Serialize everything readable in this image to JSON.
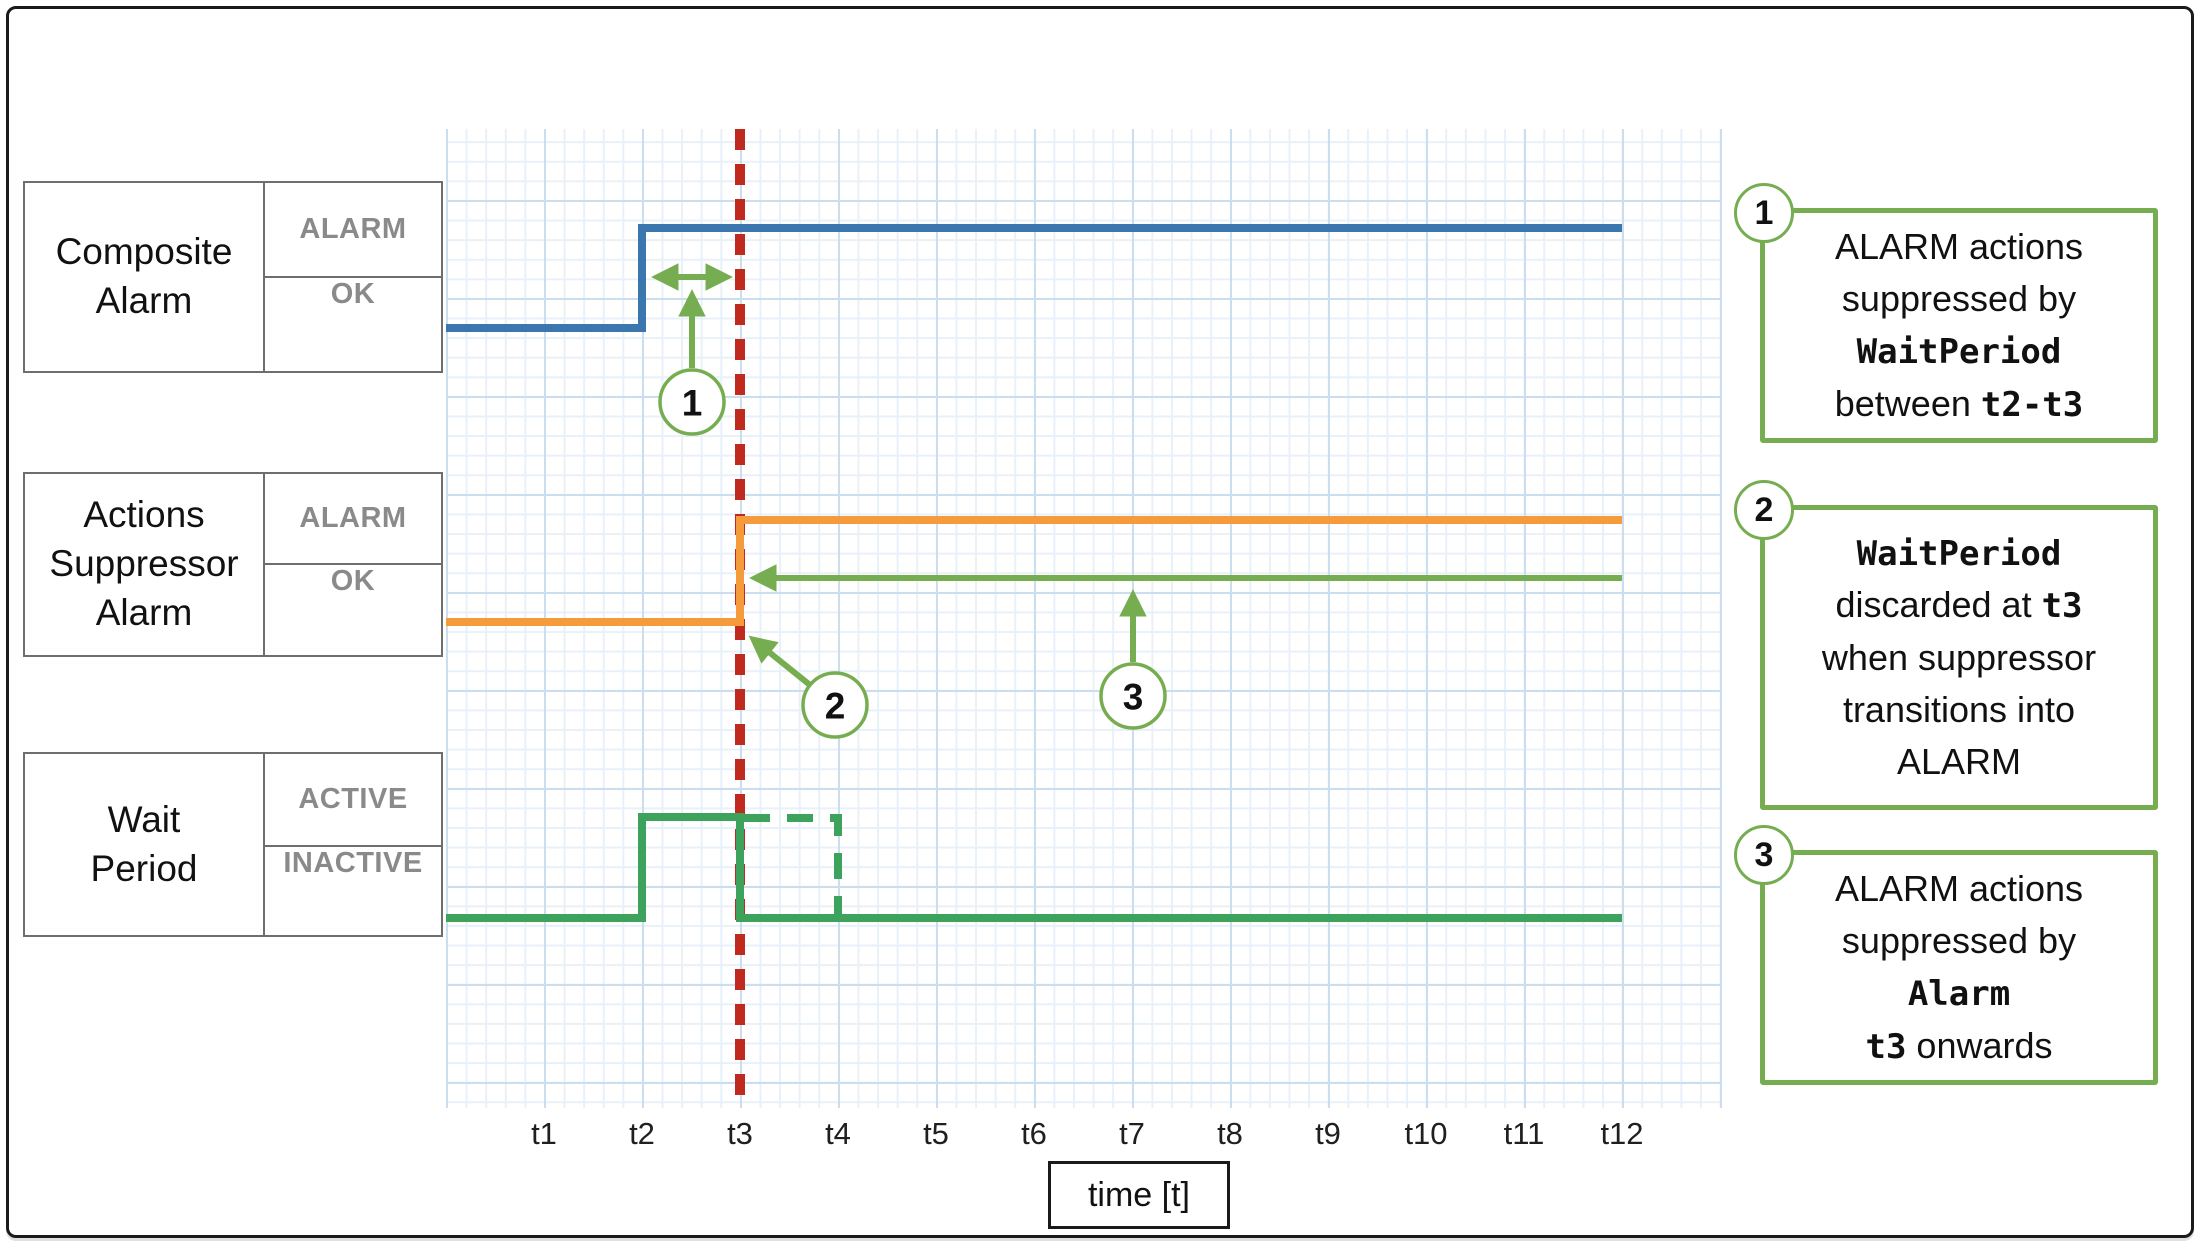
{
  "legend": {
    "rows": [
      {
        "name": "Composite\nAlarm",
        "state_top": "ALARM",
        "state_bottom": "OK"
      },
      {
        "name": "Actions\nSuppressor\nAlarm",
        "state_top": "ALARM",
        "state_bottom": "OK"
      },
      {
        "name": "Wait\nPeriod",
        "state_top": "ACTIVE",
        "state_bottom": "INACTIVE"
      }
    ]
  },
  "axis": {
    "ticks": [
      "t1",
      "t2",
      "t3",
      "t4",
      "t5",
      "t6",
      "t7",
      "t8",
      "t9",
      "t10",
      "t11",
      "t12"
    ],
    "unit_label": "time [t]"
  },
  "callouts": {
    "c1": "1",
    "c2": "2",
    "c3": "3"
  },
  "annotations": [
    {
      "number": "1",
      "lines": [
        [
          {
            "t": "ALARM actions"
          }
        ],
        [
          {
            "t": "suppressed by"
          }
        ],
        [
          {
            "t": "WaitPeriod",
            "code": true
          }
        ],
        [
          {
            "t": "between "
          },
          {
            "t": "t2-t3",
            "code": true
          }
        ]
      ]
    },
    {
      "number": "2",
      "lines": [
        [
          {
            "t": "WaitPeriod",
            "code": true
          }
        ],
        [
          {
            "t": "discarded at "
          },
          {
            "t": "t3",
            "code": true
          }
        ],
        [
          {
            "t": "when suppressor"
          }
        ],
        [
          {
            "t": "transitions into"
          }
        ],
        [
          {
            "t": "ALARM"
          }
        ]
      ]
    },
    {
      "number": "3",
      "lines": [
        [
          {
            "t": "ALARM actions"
          }
        ],
        [
          {
            "t": "suppressed by"
          }
        ],
        [
          {
            "t": "Alarm",
            "code": true
          }
        ],
        [
          {
            "t": "t3",
            "code": true
          },
          {
            "t": " onwards"
          }
        ]
      ]
    }
  ],
  "chart_data": {
    "type": "timing",
    "x_ticks": [
      "t1",
      "t2",
      "t3",
      "t4",
      "t5",
      "t6",
      "t7",
      "t8",
      "t9",
      "t10",
      "t11",
      "t12"
    ],
    "event_marker": {
      "at": "t3",
      "style": "red dashed vertical line"
    },
    "series": [
      {
        "name": "Composite Alarm",
        "color": "#3b76af",
        "levels": [
          "ALARM",
          "OK"
        ],
        "initial": "OK",
        "transitions": [
          {
            "at": "t2",
            "to": "ALARM"
          }
        ]
      },
      {
        "name": "Actions Suppressor Alarm",
        "color": "#f59b3c",
        "levels": [
          "ALARM",
          "OK"
        ],
        "initial": "OK",
        "transitions": [
          {
            "at": "t3",
            "to": "ALARM"
          }
        ]
      },
      {
        "name": "Wait Period",
        "color": "#3da35c",
        "levels": [
          "ACTIVE",
          "INACTIVE"
        ],
        "initial": "INACTIVE",
        "transitions": [
          {
            "at": "t2",
            "to": "ACTIVE"
          },
          {
            "at": "t3",
            "to": "INACTIVE"
          }
        ],
        "ghost": {
          "style": "dashed",
          "level": "ACTIVE",
          "from": "t3",
          "to": "t4",
          "note": "discarded remainder of wait period"
        }
      }
    ],
    "arrows": [
      {
        "id": "1",
        "type": "double-headed horizontal",
        "span": "t2 to t3",
        "row": "Composite Alarm"
      },
      {
        "id": "2",
        "type": "pointer",
        "target": "suppressor OK to ALARM step at t3"
      },
      {
        "id": "3",
        "type": "left-pointing horizontal",
        "span": "t3 to t12",
        "row": "Actions Suppressor Alarm"
      }
    ]
  },
  "colors": {
    "composite_line": "#3b76af",
    "suppressor_line": "#f59b3c",
    "wait_period_line": "#3da35c",
    "event_line": "#c02a1e",
    "callout_green": "#76ad50",
    "legend_border": "#6e6e6e",
    "state_text": "#8a8a8a",
    "grid_minor": "#e8f1f9",
    "grid_major": "#cbdeef"
  }
}
